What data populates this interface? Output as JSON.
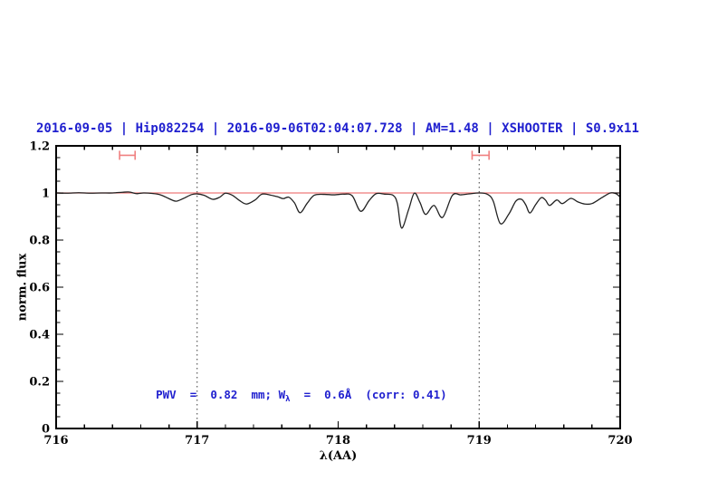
{
  "chart_data": {
    "type": "line",
    "title": "2016-09-05 | Hip082254 | 2016-09-06T02:04:07.728 | AM=1.48 | XSHOOTER | S0.9x11",
    "title_color": "#1f1fcf",
    "xlabel": "λ(AA)",
    "ylabel": "norm. flux",
    "xlim": [
      716,
      720
    ],
    "ylim": [
      0,
      1.2
    ],
    "x_ticks": [
      716,
      717,
      718,
      719,
      720
    ],
    "x_tick_labels": [
      "716",
      "717",
      "718",
      "719",
      "720"
    ],
    "x_minor_step": 0.2,
    "y_ticks": [
      0,
      0.2,
      0.4,
      0.6,
      0.8,
      1,
      1.2
    ],
    "y_tick_labels": [
      "0",
      "0.2",
      "0.4",
      "0.6",
      "0.8",
      "1",
      "1.2"
    ],
    "y_minor_step": 0.05,
    "grid": "off",
    "legend": "none",
    "vlines": {
      "x": [
        717,
        719
      ],
      "style": "dotted",
      "color": "#3a3a3a"
    },
    "continuum_line": {
      "y": 1.0,
      "color": "#ef7b7b"
    },
    "telluric_markers": {
      "color": "#f08080",
      "y": 1.16,
      "ranges": [
        {
          "x_min": 716.45,
          "x_max": 716.56
        },
        {
          "x_min": 718.95,
          "x_max": 719.07
        }
      ]
    },
    "annotation": {
      "prefix": "PWV  =  0.82  mm; W",
      "subscript": "λ",
      "suffix": "  =  0.6Å  (corr: 0.41)",
      "color": "#1f1fcf",
      "x": 716.52,
      "y": 0.2
    },
    "series": [
      {
        "name": "spectrum",
        "color": "#222222",
        "x": [
          716.0,
          716.08,
          716.16,
          716.24,
          716.32,
          716.4,
          716.47,
          716.52,
          716.57,
          716.62,
          716.68,
          716.74,
          716.8,
          716.85,
          716.9,
          716.96,
          717.0,
          717.05,
          717.11,
          717.16,
          717.2,
          717.25,
          717.3,
          717.35,
          717.41,
          717.46,
          717.52,
          717.57,
          717.61,
          717.65,
          717.69,
          717.73,
          717.78,
          717.83,
          717.9,
          717.97,
          718.04,
          718.1,
          718.16,
          718.22,
          718.27,
          718.33,
          718.39,
          718.42,
          718.45,
          718.5,
          718.54,
          718.58,
          718.62,
          718.68,
          718.74,
          718.81,
          718.87,
          718.93,
          719.0,
          719.06,
          719.1,
          719.15,
          719.21,
          719.26,
          719.3,
          719.33,
          719.36,
          719.4,
          719.44,
          719.47,
          719.5,
          719.55,
          719.59,
          719.65,
          719.7,
          719.75,
          719.8,
          719.87,
          719.93,
          719.97,
          720.0
        ],
        "y": [
          1.0,
          0.999,
          1.001,
          0.999,
          1.0,
          1.0,
          1.003,
          1.004,
          0.997,
          1.0,
          0.998,
          0.992,
          0.976,
          0.965,
          0.976,
          0.993,
          0.996,
          0.99,
          0.973,
          0.982,
          0.999,
          0.99,
          0.968,
          0.953,
          0.97,
          0.995,
          0.991,
          0.984,
          0.976,
          0.982,
          0.958,
          0.916,
          0.956,
          0.99,
          0.994,
          0.992,
          0.995,
          0.988,
          0.922,
          0.968,
          0.997,
          0.995,
          0.99,
          0.955,
          0.851,
          0.93,
          0.999,
          0.96,
          0.909,
          0.947,
          0.896,
          0.99,
          0.992,
          0.996,
          1.0,
          0.994,
          0.965,
          0.87,
          0.91,
          0.965,
          0.973,
          0.95,
          0.915,
          0.95,
          0.98,
          0.97,
          0.947,
          0.97,
          0.955,
          0.977,
          0.962,
          0.953,
          0.955,
          0.98,
          1.0,
          0.997,
          0.982
        ]
      }
    ]
  }
}
